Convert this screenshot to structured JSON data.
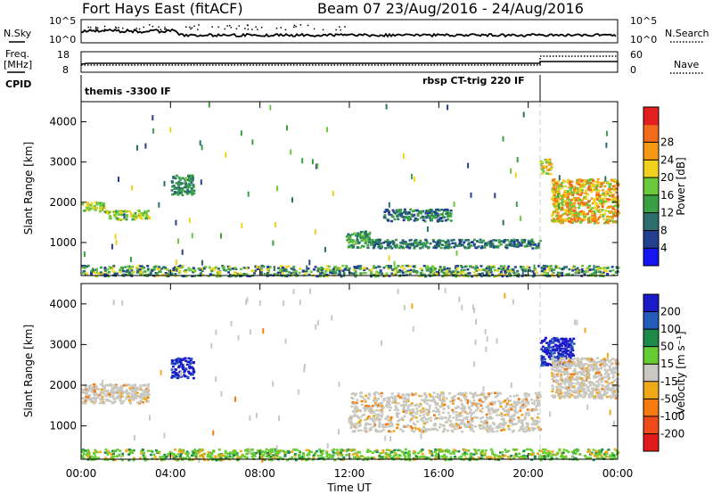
{
  "header": {
    "station": "Fort Hays East (fitACF)",
    "beam_range": "Beam 07 23/Aug/2016 - 24/Aug/2016"
  },
  "sky_panel": {
    "label_left": "N.Sky",
    "label_right": "N.Search",
    "ticks_left": [
      "10^5",
      "10^0"
    ],
    "ticks_right": [
      "10^5",
      "10^0"
    ]
  },
  "freq_panel": {
    "label_line1": "Freq.",
    "label_line2": "[MHz]",
    "ticks_left": [
      "18",
      "8"
    ],
    "ticks_right": [
      "60",
      "0"
    ],
    "label_right": "Nave"
  },
  "cpid_panel": {
    "label": "CPID",
    "programs": [
      "themis -3300 IF",
      "rbsp CT-trig 220 IF"
    ]
  },
  "colors": {
    "power": [
      "#1515f0",
      "#22408f",
      "#2a6e6e",
      "#3aa045",
      "#6cc83c",
      "#f0d21e",
      "#f59a12",
      "#f26a1a",
      "#e31e1e"
    ],
    "velocity": [
      "#1a1ac8",
      "#245ab8",
      "#1d8a4a",
      "#66cc33",
      "#c8c8c0",
      "#f0a816",
      "#f57a10",
      "#ef4a1a",
      "#e31a1a"
    ],
    "gap_line": "#cccccc"
  },
  "chart_data": [
    {
      "type": "heatmap",
      "title": "",
      "xlabel": "",
      "ylabel": "Slant Range [km]",
      "xlim": [
        "00:00",
        "00:00"
      ],
      "ylim": [
        180,
        4500
      ],
      "x_ticks": [
        "00:00",
        "04:00",
        "08:00",
        "12:00",
        "16:00",
        "20:00",
        "00:00"
      ],
      "y_ticks": [
        "1000",
        "2000",
        "3000",
        "4000"
      ],
      "colorbar": {
        "label": "Power [dB]",
        "range": [
          0,
          32
        ],
        "ticks": [
          "4",
          "8",
          "12",
          "16",
          "20",
          "24",
          "28"
        ]
      },
      "echo_regions": [
        {
          "hours": [
            0.0,
            1.0
          ],
          "range_km": [
            1800,
            2050
          ],
          "level": "14-20"
        },
        {
          "hours": [
            1.0,
            3.0
          ],
          "range_km": [
            1580,
            1820
          ],
          "level": "14-20"
        },
        {
          "hours": [
            4.0,
            5.0
          ],
          "range_km": [
            2200,
            2700
          ],
          "level": "8-12"
        },
        {
          "hours": [
            0.0,
            24.0
          ],
          "range_km": [
            180,
            450
          ],
          "level": "4-20"
        },
        {
          "hours": [
            11.8,
            13.0
          ],
          "range_km": [
            900,
            1300
          ],
          "level": "8-16"
        },
        {
          "hours": [
            13.5,
            16.5
          ],
          "range_km": [
            1550,
            1850
          ],
          "level": "4-12"
        },
        {
          "hours": [
            13.0,
            20.5
          ],
          "range_km": [
            880,
            1100
          ],
          "level": "4-12"
        },
        {
          "hours": [
            20.5,
            21.0
          ],
          "range_km": [
            2700,
            3100
          ],
          "level": "16-24"
        },
        {
          "hours": [
            21.0,
            24.0
          ],
          "range_km": [
            1500,
            2600
          ],
          "level": "16-28"
        }
      ]
    },
    {
      "type": "heatmap",
      "title": "",
      "xlabel": "Time UT",
      "ylabel": "Slant Range [km]",
      "xlim": [
        "00:00",
        "00:00"
      ],
      "ylim": [
        180,
        4500
      ],
      "x_ticks": [
        "00:00",
        "04:00",
        "08:00",
        "12:00",
        "16:00",
        "20:00",
        "00:00"
      ],
      "y_ticks": [
        "1000",
        "2000",
        "3000",
        "4000"
      ],
      "colorbar": {
        "label": "Velocity [m s⁻¹]",
        "range": [
          -250,
          250
        ],
        "ticks": [
          "200",
          "100",
          "50",
          "15",
          "-15",
          "-50",
          "-100",
          "-200"
        ]
      },
      "echo_regions": [
        {
          "hours": [
            0.0,
            3.0
          ],
          "range_km": [
            1580,
            2050
          ],
          "level": "ground scatter"
        },
        {
          "hours": [
            4.0,
            5.0
          ],
          "range_km": [
            2200,
            2700
          ],
          "level": "100-200"
        },
        {
          "hours": [
            0.0,
            24.0
          ],
          "range_km": [
            180,
            450
          ],
          "level": "15-50"
        },
        {
          "hours": [
            12.0,
            20.5
          ],
          "range_km": [
            880,
            1850
          ],
          "level": "ground scatter"
        },
        {
          "hours": [
            20.5,
            22.0
          ],
          "range_km": [
            2500,
            3200
          ],
          "level": "100-200"
        },
        {
          "hours": [
            21.0,
            24.0
          ],
          "range_km": [
            1700,
            2700
          ],
          "level": "ground scatter"
        }
      ]
    }
  ]
}
